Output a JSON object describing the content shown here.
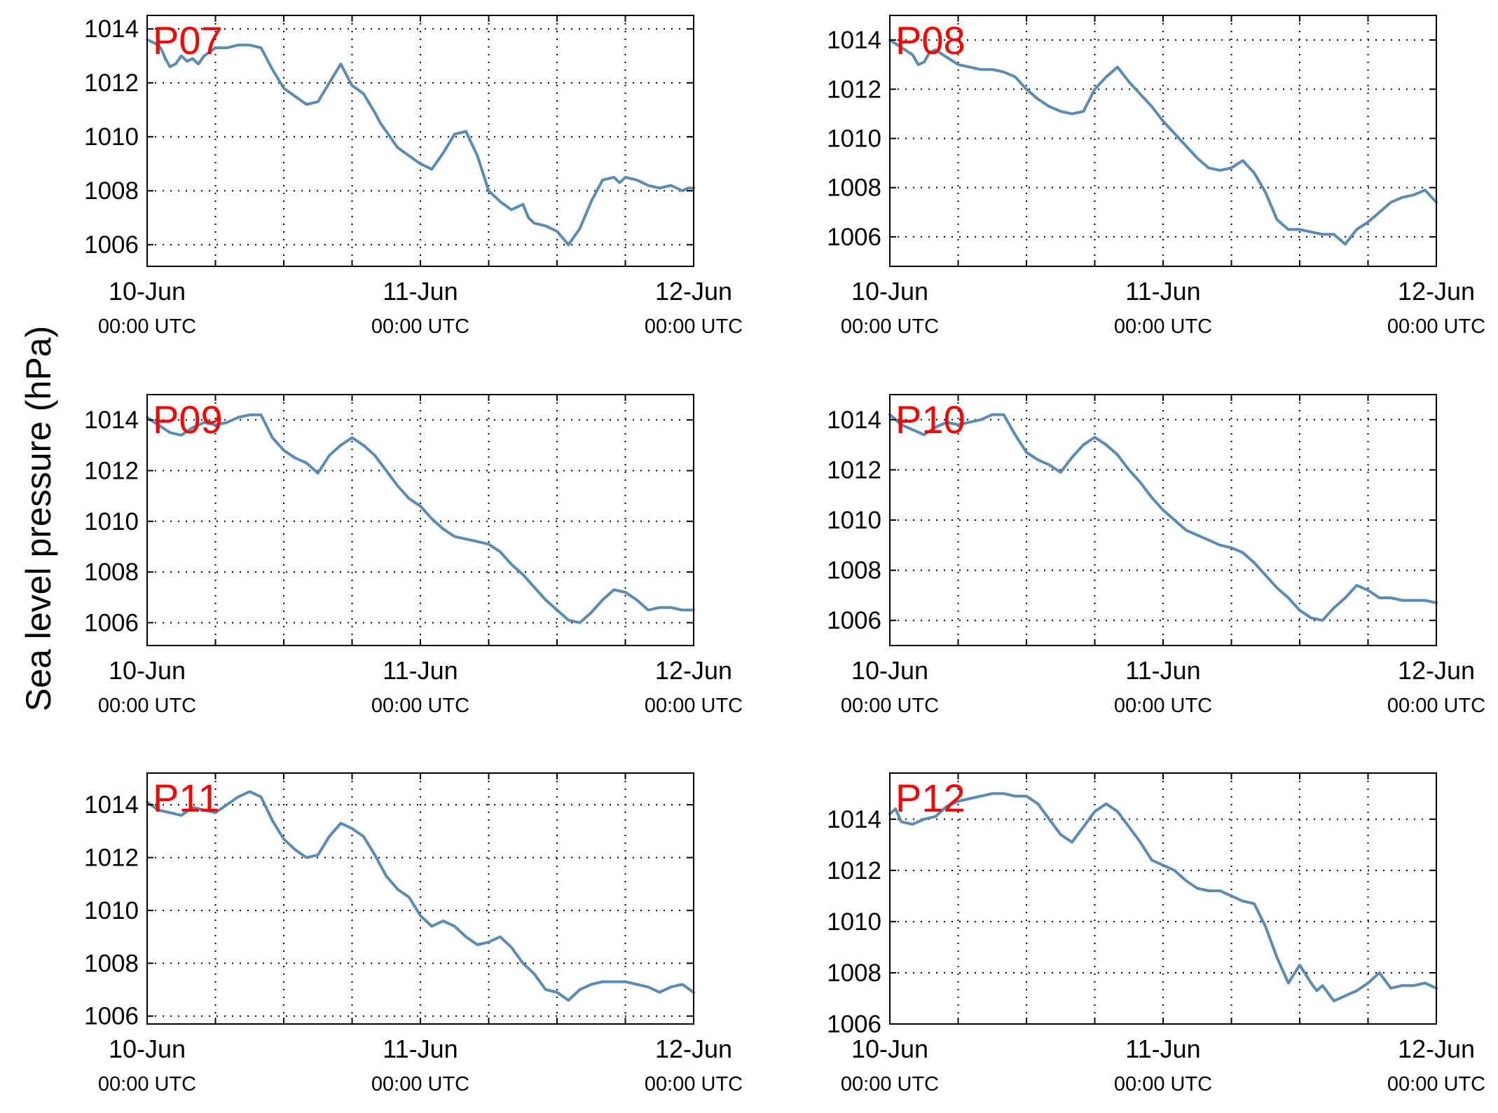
{
  "figure": {
    "ylabel": "Sea level pressure (hPa)",
    "colors": {
      "line": "#5b8bb3",
      "panel_label": "#ff0000",
      "axes": "#000000"
    }
  },
  "chart_data": [
    {
      "type": "line",
      "label": "P07",
      "xlim": [
        0,
        48
      ],
      "ylim": [
        1005.2,
        1014.5
      ],
      "yticks": [
        1006,
        1008,
        1010,
        1012,
        1014
      ],
      "grid": true,
      "xticks": [
        {
          "value": 0,
          "date": "10-Jun",
          "time": "00:00 UTC"
        },
        {
          "value": 24,
          "date": "11-Jun",
          "time": "00:00 UTC"
        },
        {
          "value": 48,
          "date": "12-Jun",
          "time": "00:00 UTC"
        }
      ],
      "series": [
        {
          "x": [
            0,
            1,
            1.3,
            1.6,
            2,
            2.5,
            3,
            3.5,
            4,
            4.5,
            5,
            6,
            7,
            8,
            9,
            10,
            11,
            12,
            13,
            14,
            15,
            16,
            17,
            18,
            19,
            20,
            20.5,
            21,
            22,
            23,
            24,
            25,
            26,
            27,
            28,
            29,
            30,
            31,
            32,
            33,
            33.5,
            34,
            35,
            36,
            37,
            38,
            39,
            40,
            41,
            41.5,
            42,
            43,
            44,
            45,
            46,
            47,
            47.5,
            48
          ],
          "y": [
            1013.6,
            1013.4,
            1013.2,
            1012.9,
            1012.6,
            1012.7,
            1013.0,
            1012.8,
            1012.9,
            1012.7,
            1013.0,
            1013.3,
            1013.3,
            1013.4,
            1013.4,
            1013.3,
            1012.5,
            1011.8,
            1011.5,
            1011.2,
            1011.3,
            1012.0,
            1012.7,
            1011.9,
            1011.6,
            1010.9,
            1010.5,
            1010.2,
            1009.6,
            1009.3,
            1009.0,
            1008.8,
            1009.4,
            1010.1,
            1010.2,
            1009.3,
            1008.0,
            1007.6,
            1007.3,
            1007.5,
            1007.0,
            1006.8,
            1006.7,
            1006.5,
            1006.0,
            1006.6,
            1007.6,
            1008.4,
            1008.5,
            1008.3,
            1008.5,
            1008.4,
            1008.2,
            1008.1,
            1008.2,
            1008.0,
            1008.1,
            1008.1
          ]
        }
      ]
    },
    {
      "type": "line",
      "label": "P08",
      "xlim": [
        0,
        48
      ],
      "ylim": [
        1004.8,
        1015.0
      ],
      "yticks": [
        1006,
        1008,
        1010,
        1012,
        1014
      ],
      "grid": true,
      "xticks": [
        {
          "value": 0,
          "date": "10-Jun",
          "time": "00:00 UTC"
        },
        {
          "value": 24,
          "date": "11-Jun",
          "time": "00:00 UTC"
        },
        {
          "value": 48,
          "date": "12-Jun",
          "time": "00:00 UTC"
        }
      ],
      "series": [
        {
          "x": [
            0,
            1,
            2,
            2.5,
            3,
            3.5,
            4,
            5,
            6,
            7,
            8,
            9,
            10,
            11,
            12,
            13,
            14,
            15,
            16,
            17,
            18,
            19,
            20,
            21,
            22,
            23,
            24,
            25,
            26,
            27,
            28,
            29,
            30,
            31,
            32,
            33,
            34,
            35,
            36,
            37,
            38,
            39,
            40,
            41,
            42,
            43,
            44,
            45,
            46,
            47,
            48
          ],
          "y": [
            1014.0,
            1013.7,
            1013.4,
            1013.0,
            1013.1,
            1013.5,
            1013.6,
            1013.3,
            1013.0,
            1012.9,
            1012.8,
            1012.8,
            1012.7,
            1012.5,
            1012.0,
            1011.6,
            1011.3,
            1011.1,
            1011.0,
            1011.1,
            1012.0,
            1012.5,
            1012.9,
            1012.3,
            1011.8,
            1011.3,
            1010.7,
            1010.2,
            1009.7,
            1009.2,
            1008.8,
            1008.7,
            1008.8,
            1009.1,
            1008.6,
            1007.8,
            1006.7,
            1006.3,
            1006.3,
            1006.2,
            1006.1,
            1006.1,
            1005.7,
            1006.3,
            1006.6,
            1007.0,
            1007.4,
            1007.6,
            1007.7,
            1007.9,
            1007.4
          ]
        }
      ]
    },
    {
      "type": "line",
      "label": "P09",
      "xlim": [
        0,
        48
      ],
      "ylim": [
        1005.1,
        1015.0
      ],
      "yticks": [
        1006,
        1008,
        1010,
        1012,
        1014
      ],
      "grid": true,
      "xticks": [
        {
          "value": 0,
          "date": "10-Jun",
          "time": "00:00 UTC"
        },
        {
          "value": 24,
          "date": "11-Jun",
          "time": "00:00 UTC"
        },
        {
          "value": 48,
          "date": "12-Jun",
          "time": "00:00 UTC"
        }
      ],
      "series": [
        {
          "x": [
            0,
            1,
            2,
            3,
            4,
            5,
            6,
            7,
            8,
            9,
            10,
            11,
            12,
            13,
            14,
            15,
            16,
            17,
            18,
            19,
            20,
            21,
            22,
            23,
            24,
            25,
            26,
            27,
            28,
            29,
            30,
            31,
            32,
            33,
            34,
            35,
            36,
            37,
            38,
            39,
            40,
            41,
            42,
            43,
            44,
            45,
            46,
            47,
            48
          ],
          "y": [
            1014.1,
            1013.8,
            1013.5,
            1013.4,
            1013.7,
            1013.9,
            1013.8,
            1013.9,
            1014.1,
            1014.2,
            1014.2,
            1013.3,
            1012.8,
            1012.5,
            1012.3,
            1011.9,
            1012.6,
            1013.0,
            1013.3,
            1013.0,
            1012.6,
            1012.0,
            1011.4,
            1010.9,
            1010.6,
            1010.1,
            1009.7,
            1009.4,
            1009.3,
            1009.2,
            1009.1,
            1008.8,
            1008.3,
            1007.9,
            1007.4,
            1006.9,
            1006.5,
            1006.1,
            1006.0,
            1006.4,
            1006.9,
            1007.3,
            1007.2,
            1006.9,
            1006.5,
            1006.6,
            1006.6,
            1006.5,
            1006.5
          ]
        }
      ]
    },
    {
      "type": "line",
      "label": "P10",
      "xlim": [
        0,
        48
      ],
      "ylim": [
        1005.0,
        1015.0
      ],
      "yticks": [
        1006,
        1008,
        1010,
        1012,
        1014
      ],
      "grid": true,
      "xticks": [
        {
          "value": 0,
          "date": "10-Jun",
          "time": "00:00 UTC"
        },
        {
          "value": 24,
          "date": "11-Jun",
          "time": "00:00 UTC"
        },
        {
          "value": 48,
          "date": "12-Jun",
          "time": "00:00 UTC"
        }
      ],
      "series": [
        {
          "x": [
            0,
            1,
            2,
            3,
            4,
            5,
            6,
            7,
            8,
            9,
            10,
            11,
            12,
            13,
            14,
            15,
            16,
            17,
            18,
            19,
            20,
            21,
            22,
            23,
            24,
            25,
            26,
            27,
            28,
            29,
            30,
            31,
            32,
            33,
            34,
            35,
            36,
            37,
            38,
            39,
            40,
            41,
            42,
            43,
            44,
            45,
            46,
            47,
            48
          ],
          "y": [
            1014.2,
            1013.8,
            1013.6,
            1013.4,
            1013.7,
            1013.9,
            1013.8,
            1013.9,
            1014.0,
            1014.2,
            1014.2,
            1013.4,
            1012.7,
            1012.4,
            1012.2,
            1011.9,
            1012.5,
            1013.0,
            1013.3,
            1013.0,
            1012.6,
            1012.0,
            1011.5,
            1010.9,
            1010.4,
            1010.0,
            1009.6,
            1009.4,
            1009.2,
            1009.0,
            1008.9,
            1008.7,
            1008.3,
            1007.8,
            1007.3,
            1006.9,
            1006.4,
            1006.1,
            1006.0,
            1006.5,
            1006.9,
            1007.4,
            1007.2,
            1006.9,
            1006.9,
            1006.8,
            1006.8,
            1006.8,
            1006.7
          ]
        }
      ]
    },
    {
      "type": "line",
      "label": "P11",
      "xlim": [
        0,
        48
      ],
      "ylim": [
        1005.7,
        1015.2
      ],
      "yticks": [
        1006,
        1008,
        1010,
        1012,
        1014
      ],
      "grid": true,
      "xticks": [
        {
          "value": 0,
          "date": "10-Jun",
          "time": "00:00 UTC"
        },
        {
          "value": 24,
          "date": "11-Jun",
          "time": "00:00 UTC"
        },
        {
          "value": 48,
          "date": "12-Jun",
          "time": "00:00 UTC"
        }
      ],
      "series": [
        {
          "x": [
            0,
            1,
            2,
            3,
            4,
            5,
            6,
            7,
            8,
            9,
            10,
            11,
            12,
            13,
            14,
            15,
            16,
            17,
            18,
            19,
            20,
            21,
            22,
            23,
            24,
            25,
            26,
            27,
            28,
            29,
            30,
            31,
            32,
            33,
            34,
            35,
            36,
            37,
            38,
            39,
            40,
            41,
            42,
            43,
            44,
            45,
            46,
            47,
            48
          ],
          "y": [
            1014.1,
            1013.8,
            1013.7,
            1013.6,
            1013.9,
            1013.8,
            1013.7,
            1014.0,
            1014.3,
            1014.5,
            1014.3,
            1013.4,
            1012.7,
            1012.3,
            1012.0,
            1012.1,
            1012.8,
            1013.3,
            1013.1,
            1012.8,
            1012.1,
            1011.3,
            1010.8,
            1010.5,
            1009.8,
            1009.4,
            1009.6,
            1009.4,
            1009.0,
            1008.7,
            1008.8,
            1009.0,
            1008.6,
            1008.0,
            1007.6,
            1007.0,
            1006.9,
            1006.6,
            1007.0,
            1007.2,
            1007.3,
            1007.3,
            1007.3,
            1007.2,
            1007.1,
            1006.9,
            1007.1,
            1007.2,
            1006.9
          ]
        }
      ]
    },
    {
      "type": "line",
      "label": "P12",
      "xlim": [
        0,
        48
      ],
      "ylim": [
        1006.0,
        1015.8
      ],
      "yticks": [
        1006,
        1008,
        1010,
        1012,
        1014
      ],
      "grid": true,
      "xticks": [
        {
          "value": 0,
          "date": "10-Jun",
          "time": "00:00 UTC"
        },
        {
          "value": 24,
          "date": "11-Jun",
          "time": "00:00 UTC"
        },
        {
          "value": 48,
          "date": "12-Jun",
          "time": "00:00 UTC"
        }
      ],
      "series": [
        {
          "x": [
            0,
            0.5,
            1,
            2,
            3,
            4,
            5,
            6,
            7,
            8,
            9,
            10,
            11,
            12,
            13,
            14,
            15,
            16,
            17,
            18,
            19,
            20,
            21,
            22,
            23,
            24,
            25,
            26,
            27,
            28,
            29,
            30,
            31,
            32,
            33,
            34,
            35,
            36,
            37,
            37.5,
            38,
            39,
            40,
            41,
            42,
            43,
            44,
            45,
            46,
            47,
            48
          ],
          "y": [
            1014.2,
            1014.4,
            1013.9,
            1013.8,
            1014.0,
            1014.1,
            1014.5,
            1014.7,
            1014.8,
            1014.9,
            1015.0,
            1015.0,
            1014.9,
            1014.9,
            1014.6,
            1014.0,
            1013.4,
            1013.1,
            1013.7,
            1014.3,
            1014.6,
            1014.3,
            1013.7,
            1013.1,
            1012.4,
            1012.2,
            1012.0,
            1011.6,
            1011.3,
            1011.2,
            1011.2,
            1011.0,
            1010.8,
            1010.7,
            1009.8,
            1008.6,
            1007.6,
            1008.3,
            1007.6,
            1007.3,
            1007.5,
            1006.9,
            1007.1,
            1007.3,
            1007.6,
            1008.0,
            1007.4,
            1007.5,
            1007.5,
            1007.6,
            1007.4
          ]
        }
      ]
    }
  ]
}
